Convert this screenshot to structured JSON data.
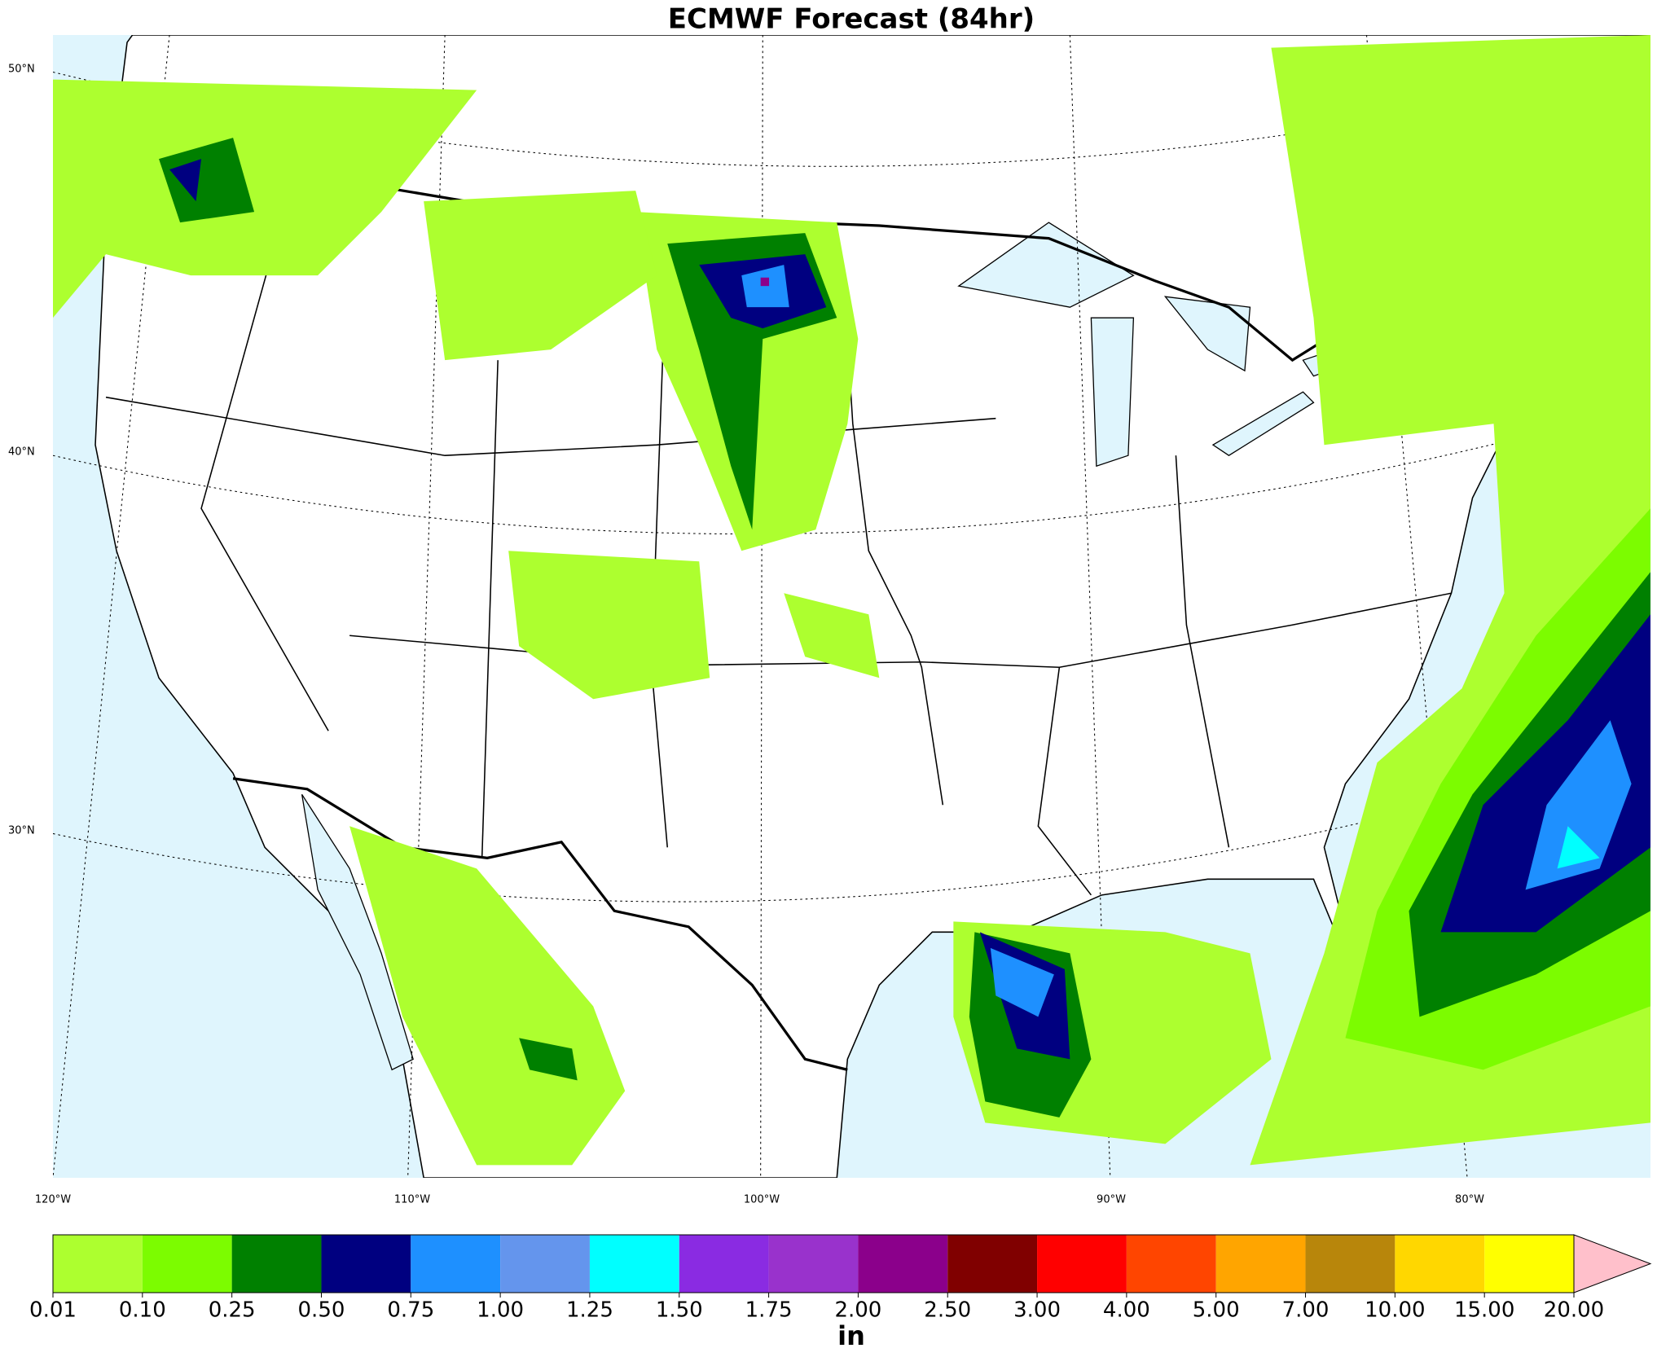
{
  "map": {
    "title": "ECMWF Forecast (84hr)",
    "latitude_labels": [
      "50°N",
      "40°N",
      "30°N"
    ],
    "longitude_labels": [
      "120°W",
      "110°W",
      "100°W",
      "90°W",
      "80°W"
    ]
  },
  "colorbar": {
    "units": "in",
    "levels": [
      {
        "value": 0.01,
        "label": "0.01"
      },
      {
        "value": 0.1,
        "label": "0.10"
      },
      {
        "value": 0.25,
        "label": "0.25"
      },
      {
        "value": 0.5,
        "label": "0.50"
      },
      {
        "value": 0.75,
        "label": "0.75"
      },
      {
        "value": 1,
        "label": "1.00"
      },
      {
        "value": 1.25,
        "label": "1.25"
      },
      {
        "value": 1.5,
        "label": "1.50"
      },
      {
        "value": 1.75,
        "label": "1.75"
      },
      {
        "value": 2,
        "label": "2.00"
      },
      {
        "value": 2.5,
        "label": "2.50"
      },
      {
        "value": 3,
        "label": "3.00"
      },
      {
        "value": 4,
        "label": "4.00"
      },
      {
        "value": 5,
        "label": "5.00"
      },
      {
        "value": 7,
        "label": "7.00"
      },
      {
        "value": 10,
        "label": "10.00"
      },
      {
        "value": 15,
        "label": "15.00"
      },
      {
        "value": 20,
        "label": "20.00"
      }
    ],
    "colors": [
      "#adff2f",
      "#7cfc00",
      "#008000",
      "#000080",
      "#1e90ff",
      "#6495ed",
      "#00ffff",
      "#8a2be2",
      "#9932cc",
      "#8b008b",
      "#800000",
      "#ff0000",
      "#ff4500",
      "#ffa500",
      "#b8860b",
      "#ffd700",
      "#ffff00"
    ],
    "extend_color": "#ffc0cb"
  }
}
